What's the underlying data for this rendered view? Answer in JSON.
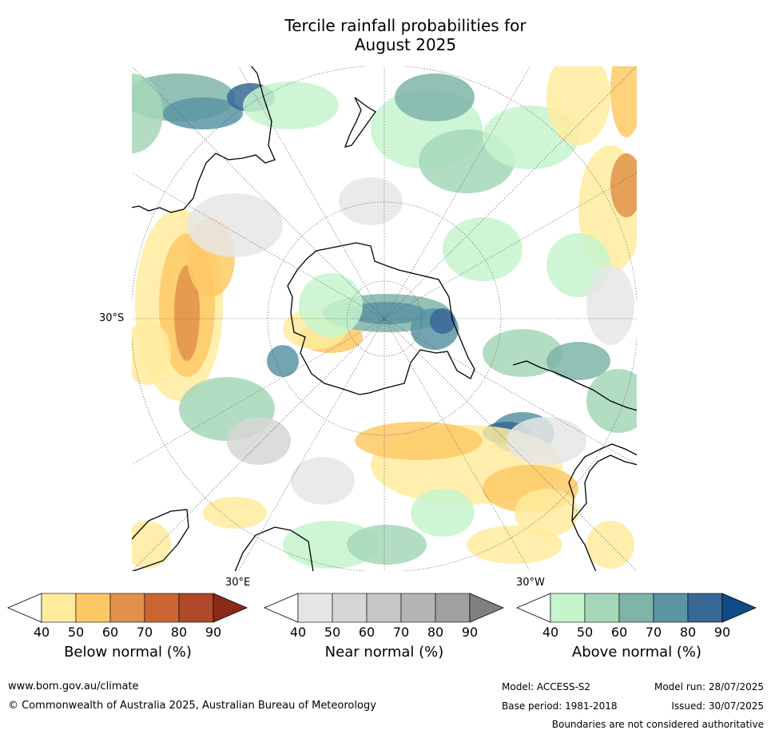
{
  "title_line1": "Tercile rainfall probabilities for",
  "title_line2": "August 2025",
  "map": {
    "projection": "south polar stereographic",
    "lat_label": "30°S",
    "lon_labels": [
      "30°E",
      "30°W"
    ],
    "colors": {
      "ocean": "#ffffff",
      "land_outline": "#000000",
      "below": [
        "#ffeb9e",
        "#fec965",
        "#e0924a",
        "#cb6531",
        "#b0482a",
        "#8b2a1a"
      ],
      "near": [
        "#e6e6e6",
        "#d6d6d6",
        "#c6c6c6",
        "#b4b4b4",
        "#a0a0a0",
        "#808080"
      ],
      "above": [
        "#c6f5cc",
        "#a4d7b8",
        "#7fb4a9",
        "#5b94a3",
        "#386896",
        "#0f4c87"
      ]
    }
  },
  "legends": [
    {
      "title": "Below normal (%)",
      "ticks": [
        "40",
        "50",
        "60",
        "70",
        "80",
        "90"
      ]
    },
    {
      "title": "Near normal (%)",
      "ticks": [
        "40",
        "50",
        "60",
        "70",
        "80",
        "90"
      ]
    },
    {
      "title": "Above normal (%)",
      "ticks": [
        "40",
        "50",
        "60",
        "70",
        "80",
        "90"
      ]
    }
  ],
  "footer": {
    "website": "www.bom.gov.au/climate",
    "copyright": "© Commonwealth of Australia 2025, Australian Bureau of Meteorology",
    "model": "Model: ACCESS-S2",
    "model_run": "Model run: 28/07/2025",
    "base_period": "Base period: 1981-2018",
    "issued": "Issued: 30/07/2025",
    "disclaimer": "Boundaries are not considered authoritative"
  }
}
